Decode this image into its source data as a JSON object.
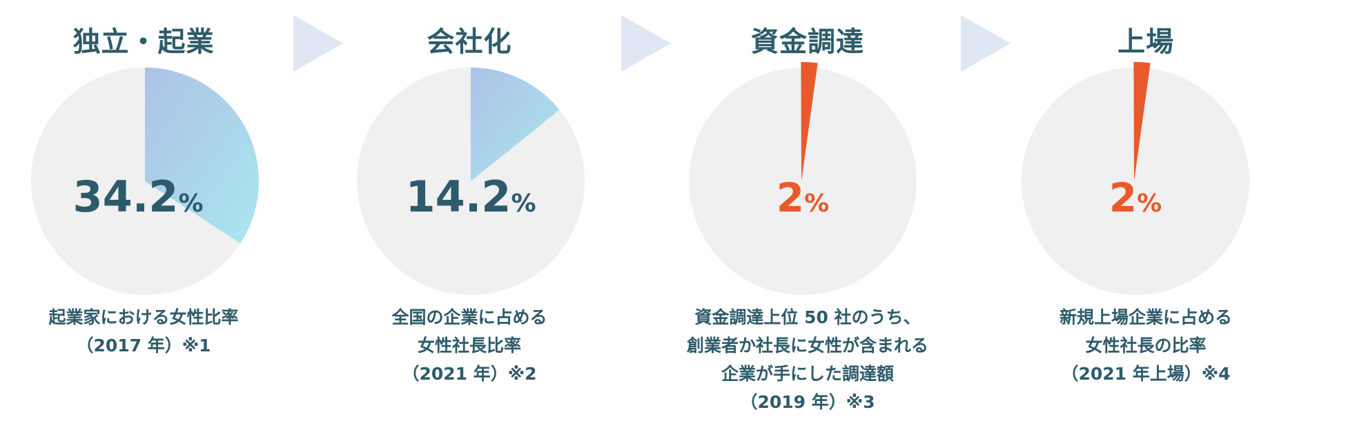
{
  "colors": {
    "text": "#2e5b6b",
    "pie_background": "#f0f0f0",
    "gradient_start": "#adc2e6",
    "gradient_end": "#a9e6ee",
    "highlight": "#e85a2a",
    "arrow": "#dfe7f5"
  },
  "panels": [
    {
      "title": "独立・起業",
      "value_number": "34.2",
      "value_unit": "%",
      "caption": [
        "起業家における女性比率",
        "（2017 年）※1"
      ]
    },
    {
      "title": "会社化",
      "value_number": "14.2",
      "value_unit": "%",
      "caption": [
        "全国の企業に占める",
        "女性社長比率",
        "（2021 年）※2"
      ]
    },
    {
      "title": "資金調達",
      "value_number": "2",
      "value_unit": "%",
      "caption": [
        "資金調達上位 50 社のうち、",
        "創業者か社長に女性が含まれる",
        "企業が手にした調達額",
        "（2019 年）※3"
      ]
    },
    {
      "title": "上場",
      "value_number": "2",
      "value_unit": "%",
      "caption": [
        "新規上場企業に占める",
        "女性社長の比率",
        "（2021 年上場）※4"
      ]
    }
  ],
  "chart_data": [
    {
      "type": "pie",
      "title": "独立・起業",
      "categories": [
        "女性",
        ""
      ],
      "values": [
        34.2,
        65.8
      ]
    },
    {
      "type": "pie",
      "title": "会社化",
      "categories": [
        "女性",
        ""
      ],
      "values": [
        14.2,
        85.8
      ]
    },
    {
      "type": "pie",
      "title": "資金調達",
      "categories": [
        "女性",
        ""
      ],
      "values": [
        2,
        98
      ]
    },
    {
      "type": "pie",
      "title": "上場",
      "categories": [
        "女性",
        ""
      ],
      "values": [
        2,
        98
      ]
    }
  ]
}
